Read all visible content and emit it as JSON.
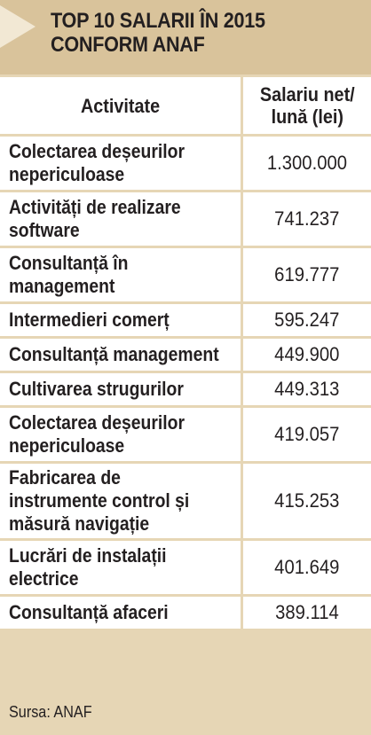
{
  "title": {
    "line1": "TOP 10 SALARII ÎN 2015",
    "line2": "CONFORM ANAF"
  },
  "table": {
    "headers": {
      "activity": "Activitate",
      "salary_line1": "Salariu net/",
      "salary_line2": "lună (lei)"
    },
    "rows": [
      {
        "activity": [
          "Colectarea deșeurilor",
          "nepericuloase"
        ],
        "salary": "1.300.000"
      },
      {
        "activity": [
          "Activități de realizare",
          "software"
        ],
        "salary": "741.237"
      },
      {
        "activity": [
          "Consultanță în",
          "management"
        ],
        "salary": "619.777"
      },
      {
        "activity": [
          "Intermedieri comerț"
        ],
        "salary": "595.247"
      },
      {
        "activity": [
          "Consultanță management"
        ],
        "salary": "449.900"
      },
      {
        "activity": [
          "Cultivarea strugurilor"
        ],
        "salary": "449.313"
      },
      {
        "activity": [
          "Colectarea deșeurilor",
          "nepericuloase"
        ],
        "salary": "419.057"
      },
      {
        "activity": [
          "Fabricarea de",
          "instrumente control și",
          "măsură navigație"
        ],
        "salary": "415.253"
      },
      {
        "activity": [
          "Lucrări de instalații",
          "electrice"
        ],
        "salary": "401.649"
      },
      {
        "activity": [
          "Consultanță afaceri"
        ],
        "salary": "389.114"
      }
    ]
  },
  "source": "Sursa: ANAF",
  "colors": {
    "background": "#e6d6b5",
    "header_band": "#d9c39b",
    "triangle": "#f2e8d4",
    "cell": "#ffffff",
    "text": "#231f20"
  }
}
